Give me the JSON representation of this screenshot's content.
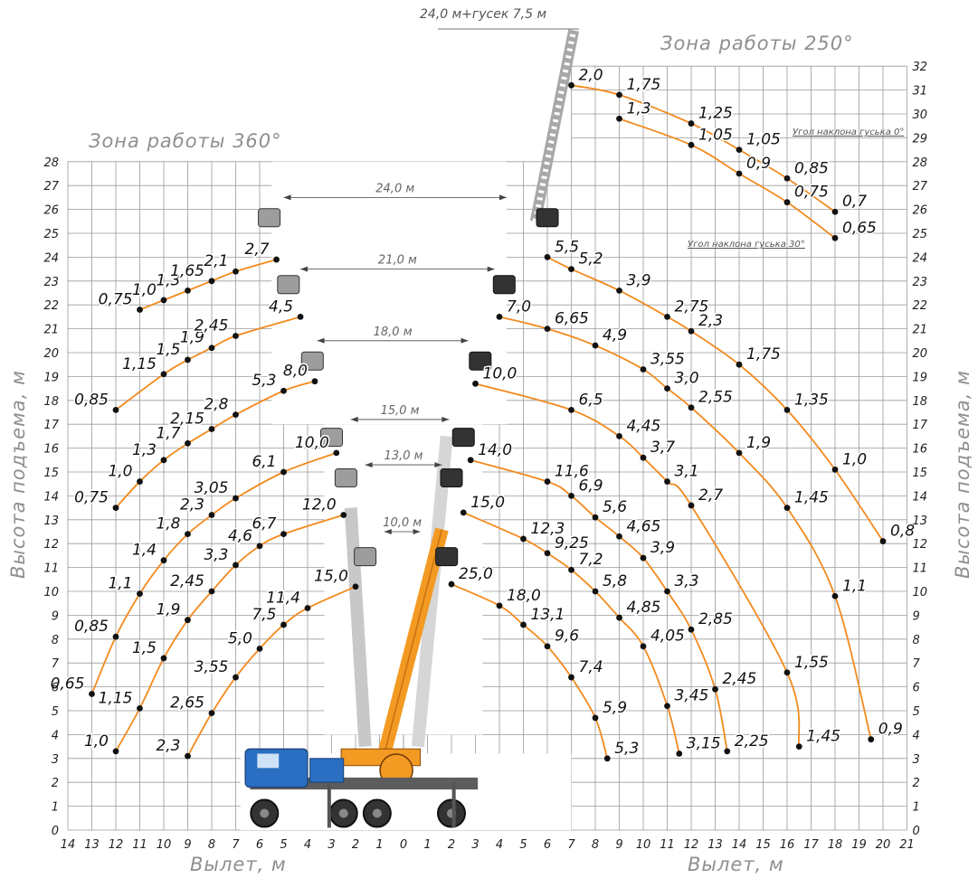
{
  "titles": {
    "zone_360": "Зона работы 360°",
    "zone_250": "Зона работы 250°",
    "x_axis_left": "Вылет, м",
    "x_axis_right": "Вылет, м",
    "y_axis_left": "Высота подъема, м",
    "y_axis_right": "Высота подъема, м",
    "top_boom": "24,0 м+гусек 7,5 м"
  },
  "notes": {
    "jib_angle_0": "Угол наклона гуська 0°",
    "jib_angle_30": "Угол наклона гуська 30°"
  },
  "colors": {
    "curve": "#f28a1e",
    "grid": "#9a9a9a",
    "crane_boom": "#f39a23",
    "truck": "#2a6fc1"
  },
  "chart_data": {
    "type": "line",
    "x_left_ticks": [
      14,
      13,
      12,
      11,
      10,
      9,
      8,
      7,
      6,
      5,
      4,
      3,
      2,
      1,
      0
    ],
    "x_right_ticks": [
      0,
      1,
      2,
      3,
      4,
      5,
      6,
      7,
      8,
      9,
      10,
      11,
      12,
      13,
      14,
      15,
      16,
      17,
      18,
      19,
      20,
      21
    ],
    "y_left_ticks": [
      0,
      1,
      2,
      3,
      4,
      5,
      6,
      7,
      8,
      9,
      10,
      11,
      12,
      13,
      14,
      15,
      16,
      17,
      18,
      19,
      20,
      21,
      22,
      23,
      24,
      25,
      26,
      27,
      28
    ],
    "y_right_ticks": [
      0,
      1,
      2,
      3,
      4,
      5,
      6,
      7,
      8,
      9,
      10,
      11,
      12,
      13,
      14,
      15,
      16,
      17,
      18,
      19,
      20,
      21,
      22,
      23,
      24,
      25,
      26,
      27,
      28,
      29,
      30,
      31,
      32
    ],
    "boom_lengths": [
      {
        "label": "24,0 м",
        "y": 26.5
      },
      {
        "label": "21,0 м",
        "y": 23.5
      },
      {
        "label": "18,0 м",
        "y": 20.5
      },
      {
        "label": "15,0 м",
        "y": 17.2
      },
      {
        "label": "13,0 м",
        "y": 15.3
      },
      {
        "label": "10,0 м",
        "y": 12.5
      }
    ],
    "series_left": [
      {
        "boom": "10,0 м",
        "points": [
          {
            "x": 9,
            "y": 3.1,
            "label": "2,3"
          },
          {
            "x": 8,
            "y": 4.9,
            "label": "2,65"
          },
          {
            "x": 7,
            "y": 6.4,
            "label": "3,55"
          },
          {
            "x": 6,
            "y": 7.6,
            "label": "5,0"
          },
          {
            "x": 5,
            "y": 8.6,
            "label": "7,5"
          },
          {
            "x": 4,
            "y": 9.3,
            "label": "11,4"
          },
          {
            "x": 2,
            "y": 10.2,
            "label": "15,0"
          }
        ]
      },
      {
        "boom": "13,0 м",
        "points": [
          {
            "x": 12,
            "y": 3.3,
            "label": "1,0"
          },
          {
            "x": 11,
            "y": 5.1,
            "label": "1,15"
          },
          {
            "x": 10,
            "y": 7.2,
            "label": "1,5"
          },
          {
            "x": 9,
            "y": 8.8,
            "label": "1,9"
          },
          {
            "x": 8,
            "y": 10.0,
            "label": "2,45"
          },
          {
            "x": 7,
            "y": 11.1,
            "label": "3,3"
          },
          {
            "x": 6,
            "y": 11.9,
            "label": "4,6"
          },
          {
            "x": 5,
            "y": 12.4,
            "label": "6,7"
          },
          {
            "x": 2.5,
            "y": 13.2,
            "label": "12,0"
          }
        ]
      },
      {
        "boom": "15,0 м",
        "points": [
          {
            "x": 13,
            "y": 5.7,
            "label": "0,65"
          },
          {
            "x": 12,
            "y": 8.1,
            "label": "0,85"
          },
          {
            "x": 11,
            "y": 9.9,
            "label": "1,1"
          },
          {
            "x": 10,
            "y": 11.3,
            "label": "1,4"
          },
          {
            "x": 9,
            "y": 12.4,
            "label": "1,8"
          },
          {
            "x": 8,
            "y": 13.2,
            "label": "2,3"
          },
          {
            "x": 7,
            "y": 13.9,
            "label": "3,05"
          },
          {
            "x": 5,
            "y": 15.0,
            "label": "6,1"
          },
          {
            "x": 2.8,
            "y": 15.8,
            "label": "10,0"
          }
        ]
      },
      {
        "boom": "18,0 м",
        "points": [
          {
            "x": 12,
            "y": 13.5,
            "label": "0,75"
          },
          {
            "x": 11,
            "y": 14.6,
            "label": "1,0"
          },
          {
            "x": 10,
            "y": 15.5,
            "label": "1,3"
          },
          {
            "x": 9,
            "y": 16.2,
            "label": "1,7"
          },
          {
            "x": 8,
            "y": 16.8,
            "label": "2,15"
          },
          {
            "x": 7,
            "y": 17.4,
            "label": "2,8"
          },
          {
            "x": 5,
            "y": 18.4,
            "label": "5,3"
          },
          {
            "x": 3.7,
            "y": 18.8,
            "label": "8,0"
          }
        ]
      },
      {
        "boom": "21,0 м",
        "points": [
          {
            "x": 12,
            "y": 17.6,
            "label": "0,85"
          },
          {
            "x": 10,
            "y": 19.1,
            "label": "1,15"
          },
          {
            "x": 9,
            "y": 19.7,
            "label": "1,5"
          },
          {
            "x": 8,
            "y": 20.2,
            "label": "1,9"
          },
          {
            "x": 7,
            "y": 20.7,
            "label": "2,45"
          },
          {
            "x": 4.3,
            "y": 21.5,
            "label": "4,5"
          }
        ]
      },
      {
        "boom": "24,0 м",
        "points": [
          {
            "x": 11,
            "y": 21.8,
            "label": "0,75"
          },
          {
            "x": 10,
            "y": 22.2,
            "label": "1,0"
          },
          {
            "x": 9,
            "y": 22.6,
            "label": "1,3"
          },
          {
            "x": 8,
            "y": 23.0,
            "label": "1,65"
          },
          {
            "x": 7,
            "y": 23.4,
            "label": "2,1"
          },
          {
            "x": 5.3,
            "y": 23.9,
            "label": "2,7"
          }
        ]
      }
    ],
    "series_right": [
      {
        "boom": "10,0 м",
        "points": [
          {
            "x": 2,
            "y": 10.3,
            "label": "25,0"
          },
          {
            "x": 4,
            "y": 9.4,
            "label": "18,0"
          },
          {
            "x": 5,
            "y": 8.6,
            "label": "13,1"
          },
          {
            "x": 6,
            "y": 7.7,
            "label": "9,6"
          },
          {
            "x": 7,
            "y": 6.4,
            "label": "7,4"
          },
          {
            "x": 8,
            "y": 4.7,
            "label": "5,9"
          },
          {
            "x": 8.5,
            "y": 3.0,
            "label": "5,3"
          }
        ]
      },
      {
        "boom": "13,0 м",
        "points": [
          {
            "x": 2.5,
            "y": 13.3,
            "label": "15,0"
          },
          {
            "x": 5,
            "y": 12.2,
            "label": "12,3"
          },
          {
            "x": 6,
            "y": 11.6,
            "label": "9,25"
          },
          {
            "x": 7,
            "y": 10.9,
            "label": "7,2"
          },
          {
            "x": 8,
            "y": 10.0,
            "label": "5,8"
          },
          {
            "x": 9,
            "y": 8.9,
            "label": "4,85"
          },
          {
            "x": 10,
            "y": 7.7,
            "label": "4,05"
          },
          {
            "x": 11,
            "y": 5.2,
            "label": "3,45"
          },
          {
            "x": 11.5,
            "y": 3.2,
            "label": "3,15"
          }
        ]
      },
      {
        "boom": "15,0 м",
        "points": [
          {
            "x": 2.8,
            "y": 15.5,
            "label": "14,0"
          },
          {
            "x": 6,
            "y": 14.6,
            "label": "11,6"
          },
          {
            "x": 7,
            "y": 14.0,
            "label": "6,9"
          },
          {
            "x": 8,
            "y": 13.1,
            "label": "5,6"
          },
          {
            "x": 9,
            "y": 12.3,
            "label": "4,65"
          },
          {
            "x": 10,
            "y": 11.4,
            "label": "3,9"
          },
          {
            "x": 11,
            "y": 10.0,
            "label": "3,3"
          },
          {
            "x": 12,
            "y": 8.4,
            "label": "2,85"
          },
          {
            "x": 13,
            "y": 5.9,
            "label": "2,45"
          },
          {
            "x": 13.5,
            "y": 3.3,
            "label": "2,25"
          }
        ]
      },
      {
        "boom": "18,0 м",
        "points": [
          {
            "x": 3,
            "y": 18.7,
            "label": "10,0"
          },
          {
            "x": 7,
            "y": 17.6,
            "label": "6,5"
          },
          {
            "x": 9,
            "y": 16.5,
            "label": "4,45"
          },
          {
            "x": 10,
            "y": 15.6,
            "label": "3,7"
          },
          {
            "x": 11,
            "y": 14.6,
            "label": "3,1"
          },
          {
            "x": 12,
            "y": 13.6,
            "label": "2,7"
          },
          {
            "x": 16,
            "y": 6.6,
            "label": "1,55"
          },
          {
            "x": 16.5,
            "y": 3.5,
            "label": "1,45"
          }
        ]
      },
      {
        "boom": "21,0 м",
        "points": [
          {
            "x": 4,
            "y": 21.5,
            "label": "7,0"
          },
          {
            "x": 6,
            "y": 21.0,
            "label": "6,65"
          },
          {
            "x": 8,
            "y": 20.3,
            "label": "4,9"
          },
          {
            "x": 10,
            "y": 19.3,
            "label": "3,55"
          },
          {
            "x": 11,
            "y": 18.5,
            "label": "3,0"
          },
          {
            "x": 12,
            "y": 17.7,
            "label": "2,55"
          },
          {
            "x": 14,
            "y": 15.8,
            "label": "1,9"
          },
          {
            "x": 16,
            "y": 13.5,
            "label": "1,45"
          },
          {
            "x": 18,
            "y": 9.8,
            "label": "1,1"
          },
          {
            "x": 19.5,
            "y": 3.8,
            "label": "0,9"
          }
        ]
      },
      {
        "boom": "24,0 м",
        "points": [
          {
            "x": 6,
            "y": 24.0,
            "label": "5,5"
          },
          {
            "x": 7,
            "y": 23.5,
            "label": "5,2"
          },
          {
            "x": 9,
            "y": 22.6,
            "label": "3,9"
          },
          {
            "x": 11,
            "y": 21.5,
            "label": "2,75"
          },
          {
            "x": 12,
            "y": 20.9,
            "label": "2,3"
          },
          {
            "x": 14,
            "y": 19.5,
            "label": "1,75"
          },
          {
            "x": 16,
            "y": 17.6,
            "label": "1,35"
          },
          {
            "x": 18,
            "y": 15.1,
            "label": "1,0"
          },
          {
            "x": 20,
            "y": 12.1,
            "label": "0,8"
          }
        ]
      },
      {
        "boom": "24,0 м+гусек 7,5 м (0°)",
        "points": [
          {
            "x": 7,
            "y": 31.2,
            "label": "2,0"
          },
          {
            "x": 9,
            "y": 30.8,
            "label": "1,75"
          },
          {
            "x": 12,
            "y": 29.6,
            "label": "1,25"
          },
          {
            "x": 14,
            "y": 28.5,
            "label": "1,05"
          },
          {
            "x": 16,
            "y": 27.3,
            "label": "0,85"
          },
          {
            "x": 18,
            "y": 25.9,
            "label": "0,7"
          }
        ]
      },
      {
        "boom": "24,0 м+гусек 7,5 м (30°)",
        "points": [
          {
            "x": 9,
            "y": 29.8,
            "label": "1,3"
          },
          {
            "x": 12,
            "y": 28.7,
            "label": "1,05"
          },
          {
            "x": 14,
            "y": 27.5,
            "label": "0,9"
          },
          {
            "x": 16,
            "y": 26.3,
            "label": "0,75"
          },
          {
            "x": 18,
            "y": 24.8,
            "label": "0,65"
          }
        ]
      }
    ]
  }
}
